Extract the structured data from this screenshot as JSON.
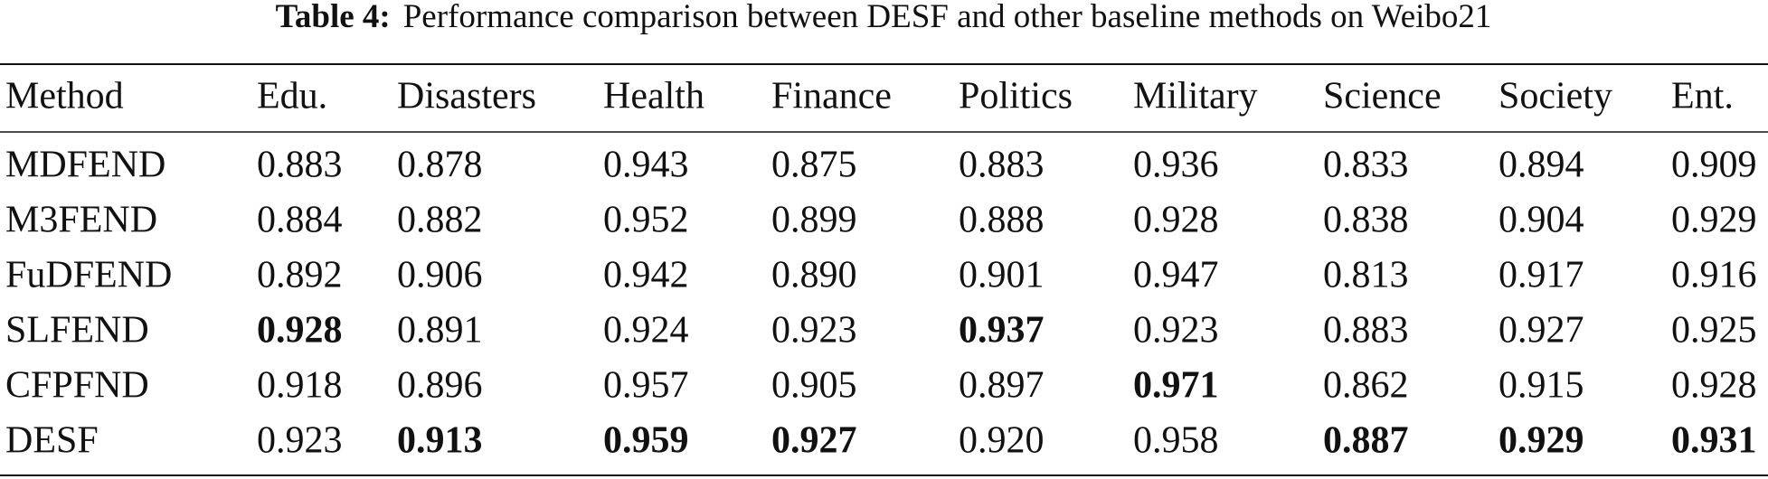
{
  "caption": {
    "label": "Table 4:",
    "text": "Performance comparison between DESF and other baseline methods on Weibo21"
  },
  "table": {
    "header": [
      "Method",
      "Edu.",
      "Disasters",
      "Health",
      "Finance",
      "Politics",
      "Military",
      "Science",
      "Society",
      "Ent."
    ],
    "rows": [
      [
        "MDFEND",
        "0.883",
        "0.878",
        "0.943",
        "0.875",
        "0.883",
        "0.936",
        "0.833",
        "0.894",
        "0.909"
      ],
      [
        "M3FEND",
        "0.884",
        "0.882",
        "0.952",
        "0.899",
        "0.888",
        "0.928",
        "0.838",
        "0.904",
        "0.929"
      ],
      [
        "FuDFEND",
        "0.892",
        "0.906",
        "0.942",
        "0.890",
        "0.901",
        "0.947",
        "0.813",
        "0.917",
        "0.916"
      ],
      [
        "SLFEND",
        "0.928",
        "0.891",
        "0.924",
        "0.923",
        "0.937",
        "0.923",
        "0.883",
        "0.927",
        "0.925"
      ],
      [
        "CFPFND",
        "0.918",
        "0.896",
        "0.957",
        "0.905",
        "0.897",
        "0.971",
        "0.862",
        "0.915",
        "0.928"
      ],
      [
        "DESF",
        "0.923",
        "0.913",
        "0.959",
        "0.927",
        "0.920",
        "0.958",
        "0.887",
        "0.929",
        "0.931"
      ]
    ],
    "bold": [
      [
        false,
        false,
        false,
        false,
        false,
        false,
        false,
        false,
        false,
        false
      ],
      [
        false,
        false,
        false,
        false,
        false,
        false,
        false,
        false,
        false,
        false
      ],
      [
        false,
        false,
        false,
        false,
        false,
        false,
        false,
        false,
        false,
        false
      ],
      [
        false,
        true,
        false,
        false,
        false,
        true,
        false,
        false,
        false,
        false
      ],
      [
        false,
        false,
        false,
        false,
        false,
        false,
        true,
        false,
        false,
        false
      ],
      [
        false,
        false,
        true,
        true,
        true,
        false,
        false,
        true,
        true,
        true
      ]
    ]
  }
}
